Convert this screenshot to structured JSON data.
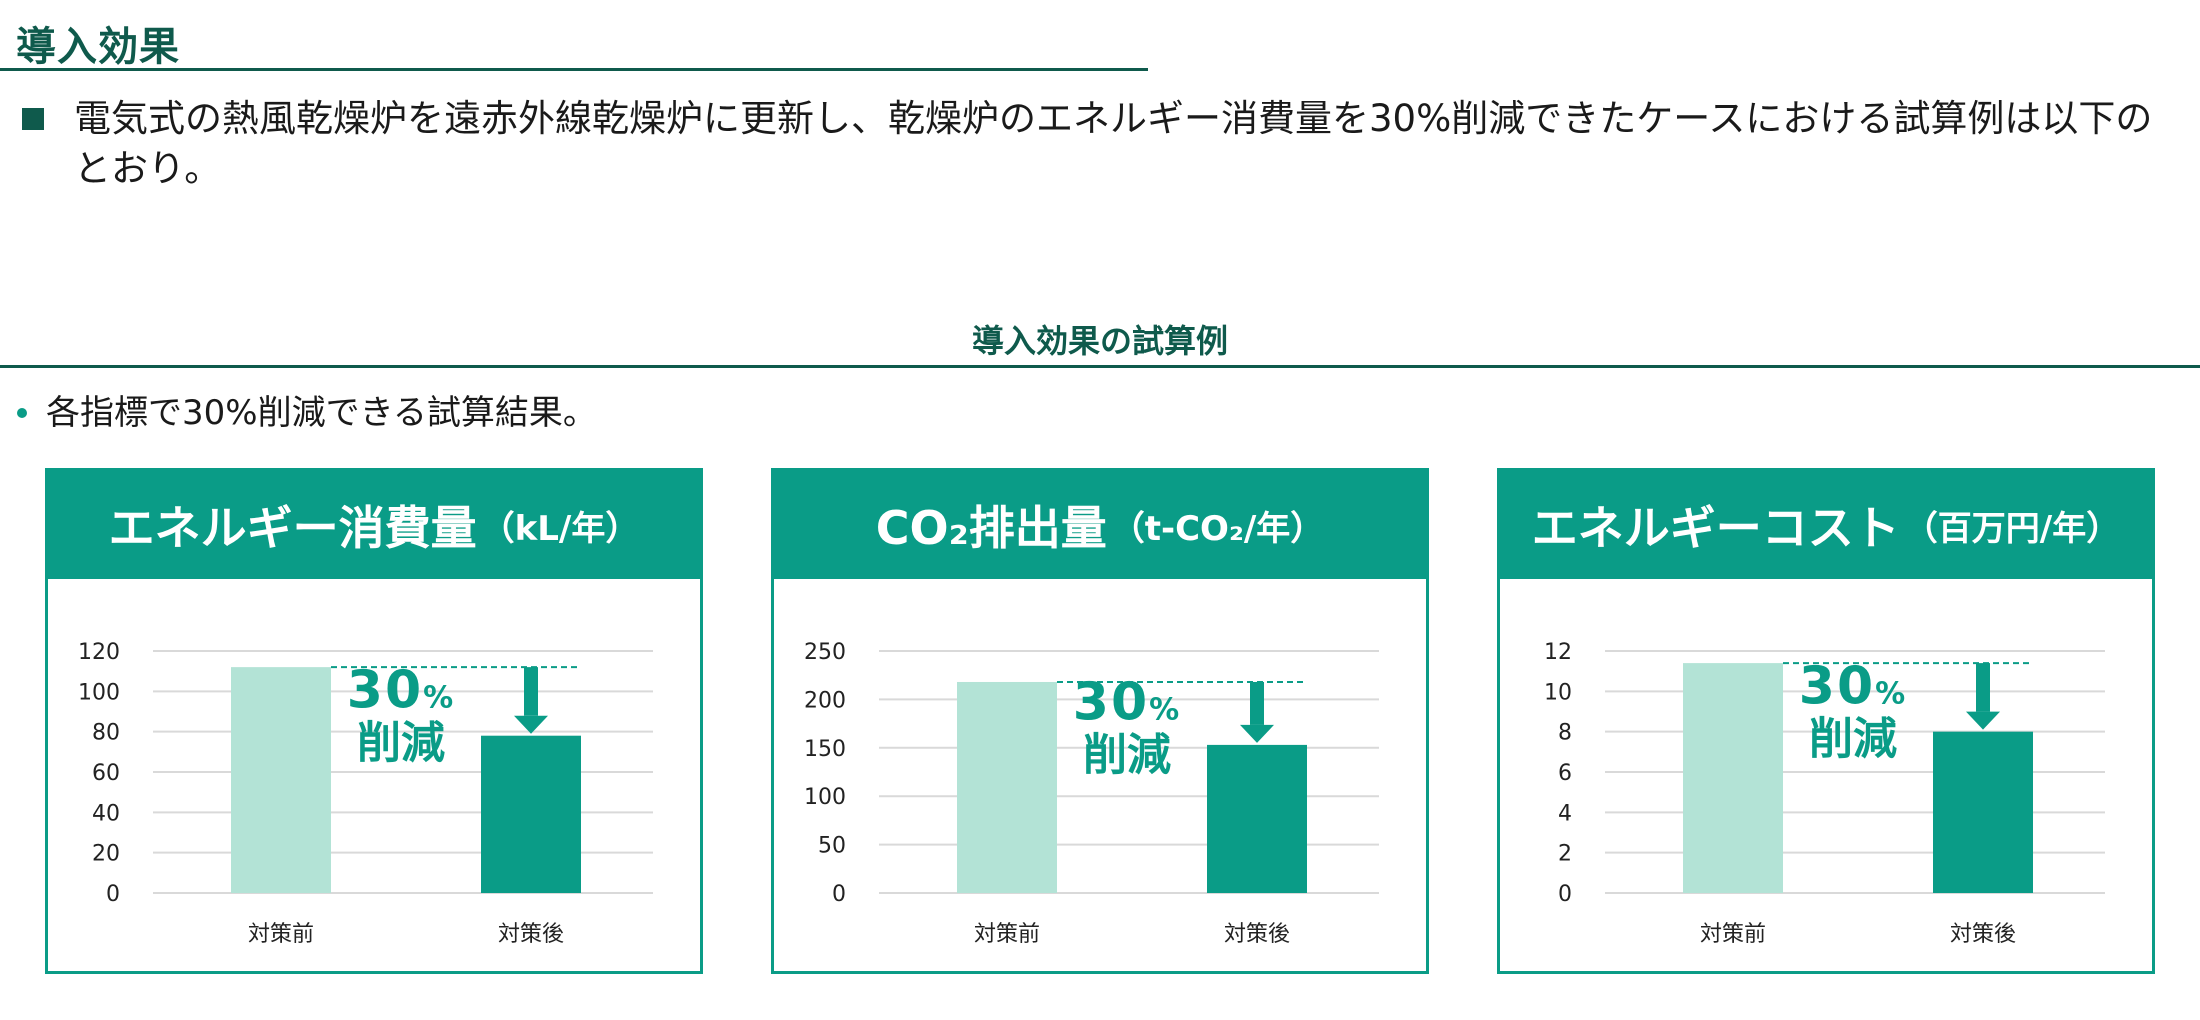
{
  "page": {
    "title": "導入効果",
    "intro": "電気式の熱風乾燥炉を遠赤外線乾燥炉に更新し、乾燥炉のエネルギー消費量を30%削減できたケースにおける試算例は以下のとおり。",
    "section_title": "導入効果の試算例",
    "sub_bullet": "各指標で30%削減できる試算結果。"
  },
  "colors": {
    "accent": "#0a9c87",
    "dark": "#0f5a4c",
    "before_bar": "#b3e3d6",
    "after_bar": "#0a9c87"
  },
  "chart_data": [
    {
      "type": "bar",
      "title": "エネルギー消費量",
      "unit": "（kL/年）",
      "categories": [
        "対策前",
        "対策後"
      ],
      "values": [
        112,
        78
      ],
      "ylim": [
        0,
        120
      ],
      "yticks": [
        0,
        20,
        40,
        60,
        80,
        100,
        120
      ],
      "annotation": {
        "percent": "30",
        "percent_sign": "%",
        "label": "削減"
      },
      "grid": true
    },
    {
      "type": "bar",
      "title": "CO₂排出量",
      "unit": "（t-CO₂/年）",
      "categories": [
        "対策前",
        "対策後"
      ],
      "values": [
        218,
        153
      ],
      "ylim": [
        0,
        250
      ],
      "yticks": [
        0,
        50,
        100,
        150,
        200,
        250
      ],
      "annotation": {
        "percent": "30",
        "percent_sign": "%",
        "label": "削減"
      },
      "grid": true
    },
    {
      "type": "bar",
      "title": "エネルギーコスト",
      "unit": "（百万円/年）",
      "categories": [
        "対策前",
        "対策後"
      ],
      "values": [
        11.4,
        8
      ],
      "ylim": [
        0,
        12
      ],
      "yticks": [
        0,
        2,
        4,
        6,
        8,
        10,
        12
      ],
      "annotation": {
        "percent": "30",
        "percent_sign": "%",
        "label": "削減"
      },
      "grid": true
    }
  ]
}
